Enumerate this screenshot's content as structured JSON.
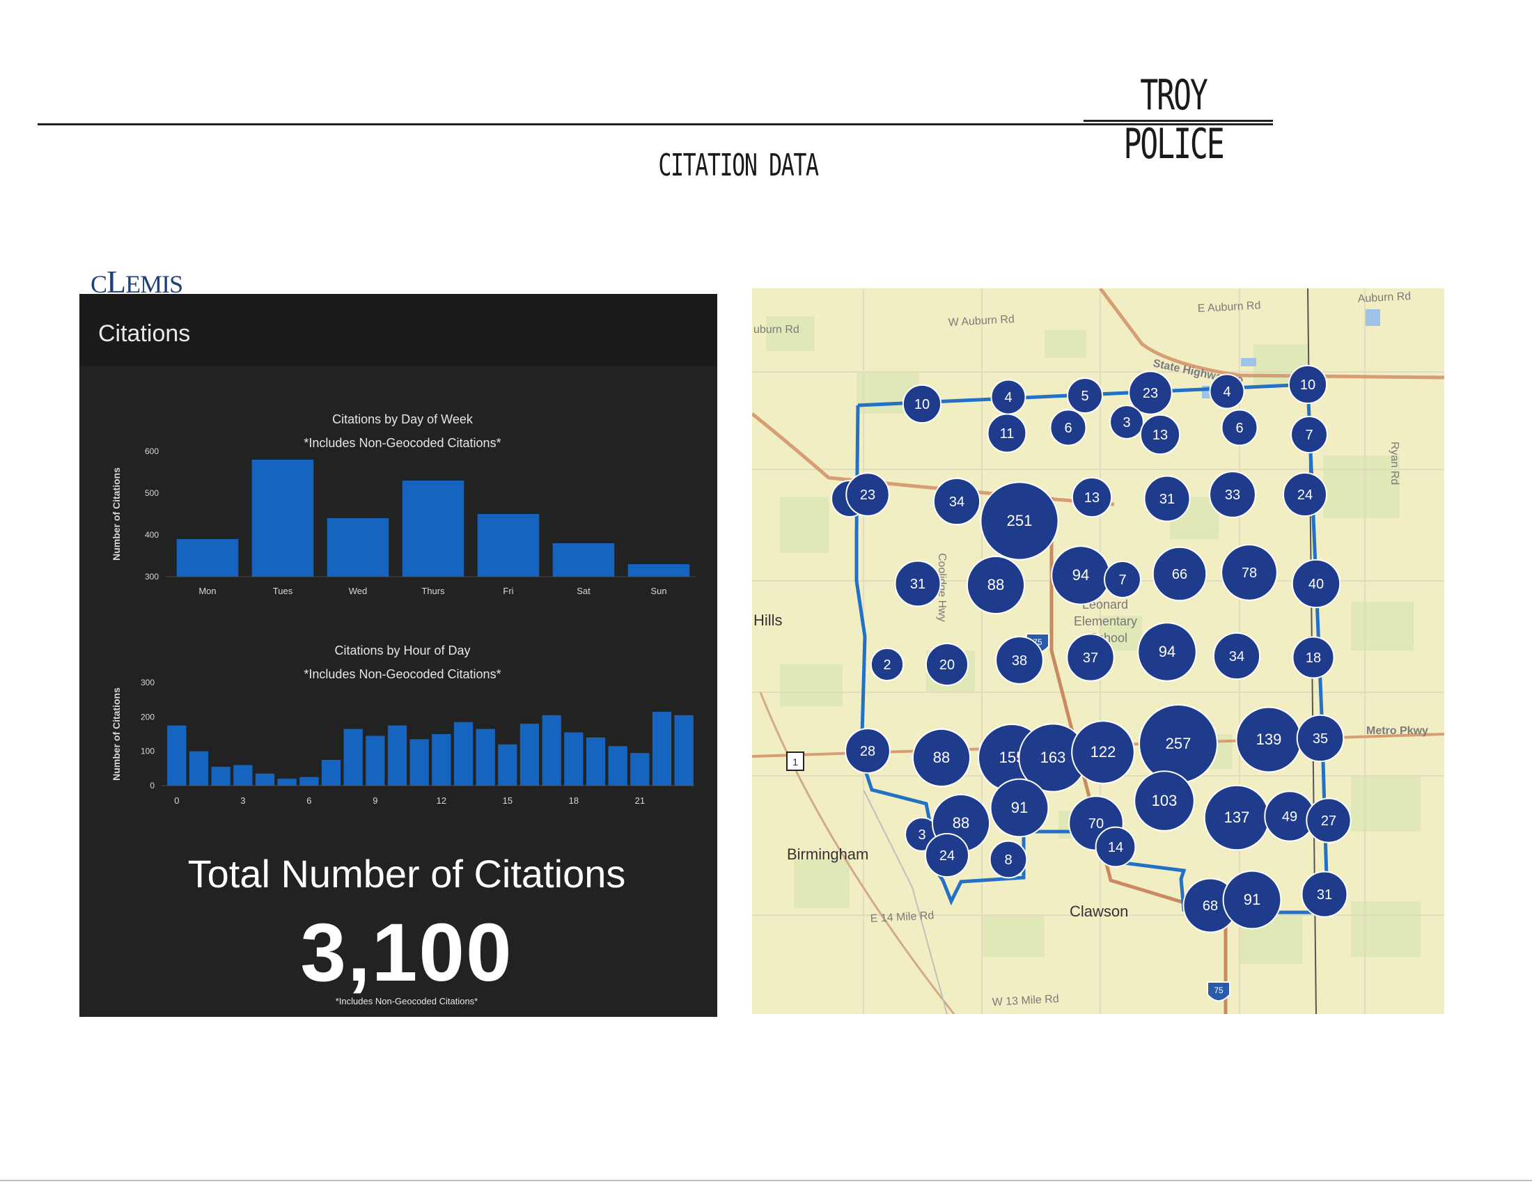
{
  "header": {
    "org": "TROY POLICE",
    "doc_title": "CITATION DATA"
  },
  "logo": {
    "text_a": "C",
    "text_b": "L",
    "text_c": "EMIS"
  },
  "dashboard": {
    "title": "Citations",
    "total_label": "Total Number of Citations",
    "total_value": "3,100",
    "total_note": "*Includes Non-Geocoded Citations*"
  },
  "chart_data": [
    {
      "type": "bar",
      "title": "Citations by Day of Week",
      "subtitle": "*Includes Non-Geocoded Citations*",
      "xlabel": "",
      "ylabel": "Number of Citations",
      "categories": [
        "Mon",
        "Tues",
        "Wed",
        "Thurs",
        "Fri",
        "Sat",
        "Sun"
      ],
      "values": [
        390,
        580,
        440,
        530,
        450,
        380,
        330
      ],
      "ylim": [
        300,
        600
      ],
      "yticks": [
        300,
        400,
        500,
        600
      ],
      "color": "#1565c0"
    },
    {
      "type": "bar",
      "title": "Citations by Hour of Day",
      "subtitle": "*Includes Non-Geocoded Citations*",
      "xlabel": "Hour of Day",
      "ylabel": "Number of Citations",
      "x": [
        0,
        1,
        2,
        3,
        4,
        5,
        6,
        7,
        8,
        9,
        10,
        11,
        12,
        13,
        14,
        15,
        16,
        17,
        18,
        19,
        20,
        21,
        22,
        23
      ],
      "values": [
        175,
        100,
        55,
        60,
        35,
        20,
        25,
        75,
        165,
        145,
        175,
        135,
        150,
        185,
        165,
        120,
        180,
        205,
        155,
        140,
        115,
        95,
        215,
        205
      ],
      "xticks": [
        0,
        3,
        6,
        9,
        12,
        15,
        18,
        21
      ],
      "ylim": [
        0,
        300
      ],
      "yticks": [
        0,
        100,
        200,
        300
      ],
      "color": "#1565c0"
    }
  ],
  "map": {
    "road_labels": [
      {
        "text": "uburn Rd"
      },
      {
        "text": "W Auburn Rd"
      },
      {
        "text": "E Auburn Rd"
      },
      {
        "text": "Auburn Rd"
      },
      {
        "text": "State Highway 59"
      },
      {
        "text": "Ryan Rd"
      },
      {
        "text": "Metro Pkwy"
      },
      {
        "text": "Coolidge Hwy"
      },
      {
        "text": "E 14 Mile Rd"
      },
      {
        "text": "W 13 Mile Rd"
      }
    ],
    "place_labels": [
      "Hills",
      "Birmingham",
      "Clawson",
      "Leonard",
      "Elementary",
      "School"
    ],
    "shields": [
      "75",
      "75",
      "1"
    ],
    "clusters": [
      {
        "label": "10",
        "count": 10
      },
      {
        "label": "4",
        "count": 4
      },
      {
        "label": "5",
        "count": 5
      },
      {
        "label": "23",
        "count": 23
      },
      {
        "label": "4",
        "count": 4
      },
      {
        "label": "10",
        "count": 10
      },
      {
        "label": "11",
        "count": 11
      },
      {
        "label": "6",
        "count": 6
      },
      {
        "label": "3",
        "count": 3
      },
      {
        "label": "13",
        "count": 13
      },
      {
        "label": "6",
        "count": 6
      },
      {
        "label": "7",
        "count": 7
      },
      {
        "label": "7",
        "count": 7
      },
      {
        "label": "23",
        "count": 23
      },
      {
        "label": "34",
        "count": 34
      },
      {
        "label": "251",
        "count": 251
      },
      {
        "label": "13",
        "count": 13
      },
      {
        "label": "31",
        "count": 31
      },
      {
        "label": "33",
        "count": 33
      },
      {
        "label": "24",
        "count": 24
      },
      {
        "label": "31",
        "count": 31
      },
      {
        "label": "88",
        "count": 88
      },
      {
        "label": "94",
        "count": 94
      },
      {
        "label": "7",
        "count": 7
      },
      {
        "label": "66",
        "count": 66
      },
      {
        "label": "78",
        "count": 78
      },
      {
        "label": "40",
        "count": 40
      },
      {
        "label": "2",
        "count": 2
      },
      {
        "label": "20",
        "count": 20
      },
      {
        "label": "38",
        "count": 38
      },
      {
        "label": "37",
        "count": 37
      },
      {
        "label": "94",
        "count": 94
      },
      {
        "label": "34",
        "count": 34
      },
      {
        "label": "18",
        "count": 18
      },
      {
        "label": "28",
        "count": 28
      },
      {
        "label": "88",
        "count": 88
      },
      {
        "label": "155",
        "count": 155
      },
      {
        "label": "163",
        "count": 163
      },
      {
        "label": "122",
        "count": 122
      },
      {
        "label": "257",
        "count": 257
      },
      {
        "label": "139",
        "count": 139
      },
      {
        "label": "35",
        "count": 35
      },
      {
        "label": "3",
        "count": 3
      },
      {
        "label": "88",
        "count": 88
      },
      {
        "label": "91",
        "count": 91
      },
      {
        "label": "70",
        "count": 70
      },
      {
        "label": "103",
        "count": 103
      },
      {
        "label": "137",
        "count": 137
      },
      {
        "label": "49",
        "count": 49
      },
      {
        "label": "27",
        "count": 27
      },
      {
        "label": "24",
        "count": 24
      },
      {
        "label": "8",
        "count": 8
      },
      {
        "label": "14",
        "count": 14
      },
      {
        "label": "68",
        "count": 68
      },
      {
        "label": "91",
        "count": 91
      },
      {
        "label": "31",
        "count": 31
      }
    ]
  }
}
